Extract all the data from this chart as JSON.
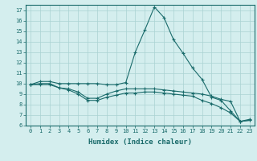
{
  "xlabel": "Humidex (Indice chaleur)",
  "x_values": [
    0,
    1,
    2,
    3,
    4,
    5,
    6,
    7,
    8,
    9,
    10,
    11,
    12,
    13,
    14,
    15,
    16,
    17,
    18,
    19,
    20,
    21,
    22,
    23
  ],
  "line1": [
    9.9,
    10.2,
    10.2,
    10.0,
    10.0,
    10.0,
    10.0,
    10.0,
    9.9,
    9.9,
    10.1,
    13.0,
    15.1,
    17.3,
    16.3,
    14.2,
    12.9,
    11.5,
    10.4,
    8.7,
    8.4,
    7.4,
    6.4,
    6.5
  ],
  "line2": [
    9.9,
    10.0,
    10.0,
    9.6,
    9.5,
    9.2,
    8.6,
    8.6,
    9.0,
    9.3,
    9.5,
    9.5,
    9.5,
    9.5,
    9.4,
    9.3,
    9.2,
    9.1,
    9.0,
    8.8,
    8.5,
    8.3,
    6.4,
    6.5
  ],
  "line3": [
    9.9,
    9.9,
    9.9,
    9.6,
    9.4,
    9.0,
    8.4,
    8.4,
    8.7,
    8.9,
    9.1,
    9.1,
    9.2,
    9.2,
    9.1,
    9.0,
    8.9,
    8.8,
    8.4,
    8.1,
    7.7,
    7.2,
    6.4,
    6.6
  ],
  "line_color": "#1a6b6b",
  "bg_color": "#d4eeee",
  "grid_color": "#aad2d2",
  "ylim": [
    6,
    17.5
  ],
  "yticks": [
    6,
    7,
    8,
    9,
    10,
    11,
    12,
    13,
    14,
    15,
    16,
    17
  ],
  "xticks": [
    0,
    1,
    2,
    3,
    4,
    5,
    6,
    7,
    8,
    9,
    10,
    11,
    12,
    13,
    14,
    15,
    16,
    17,
    18,
    19,
    20,
    21,
    22,
    23
  ],
  "marker": "+",
  "markersize": 3,
  "linewidth": 0.8
}
